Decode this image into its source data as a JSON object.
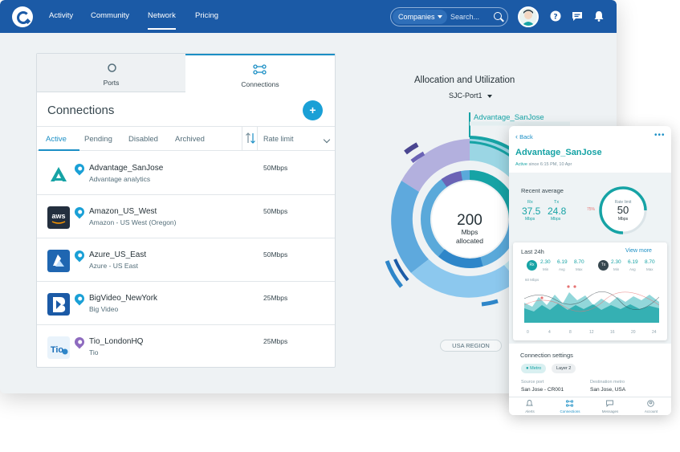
{
  "nav": {
    "items": [
      "Activity",
      "Community",
      "Network",
      "Pricing"
    ],
    "active": "Network"
  },
  "search": {
    "select": "Companies",
    "placeholder": "Search..."
  },
  "tabs": {
    "ports": "Ports",
    "connections": "Connections"
  },
  "panel": {
    "title": "Connections",
    "add_label": "+",
    "filters": [
      "Active",
      "Pending",
      "Disabled",
      "Archived"
    ],
    "rate_header": "Rate limit"
  },
  "connections": [
    {
      "name": "Advantage_SanJose",
      "sub": "Advantage analytics",
      "rate": "50Mbps",
      "pin_color": "#1aa0d6",
      "logo": "advantage-logo"
    },
    {
      "name": "Amazon_US_West",
      "sub": "Amazon - US West (Oregon)",
      "rate": "50Mbps",
      "pin_color": "#1aa0d6",
      "logo": "aws-logo"
    },
    {
      "name": "Azure_US_East",
      "sub": "Azure - US East",
      "rate": "50Mbps",
      "pin_color": "#1aa0d6",
      "logo": "azure-logo"
    },
    {
      "name": "BigVideo_NewYork",
      "sub": "Big Video",
      "rate": "25Mbps",
      "pin_color": "#1aa0d6",
      "logo": "bigvideo-logo"
    },
    {
      "name": "Tio_LondonHQ",
      "sub": "Tio",
      "rate": "25Mbps",
      "pin_color": "#8e6bbf",
      "logo": "tio-logo"
    }
  ],
  "allocation": {
    "title": "Allocation and Utilization",
    "port": "SJC-Port1",
    "center_value": "200",
    "center_unit": "Mbps",
    "center_label": "allocated",
    "highlight_label": "Advantage_SanJose",
    "region": "USA REGION",
    "colors": {
      "teal": "#16a3a5",
      "blue": "#2e86c9",
      "lavender": "#b3b0de",
      "purple": "#6b63b5"
    }
  },
  "mobile": {
    "back": "Back",
    "title": "Advantage_SanJose",
    "active_word": "Active",
    "active_since": "since 6:15 PM, 10 Apr",
    "recent_label": "Recent average",
    "rx_label": "Rx",
    "rx_value": "37.5",
    "tx_label": "Tx",
    "tx_value": "24.8",
    "unit": "Mbps",
    "gauge_percent_label": "75%",
    "gauge_top": "Rate limit",
    "gauge_value": "50",
    "gauge_unit": "Mbps",
    "gauge_fill": 0.75,
    "last24_label": "Last 24h",
    "view_more": "View more",
    "rx_badge": "Rx",
    "tx_badge": "Tx",
    "rx_stats": [
      "2.30",
      "6.19",
      "8.70"
    ],
    "tx_stats": [
      "2.30",
      "6.19",
      "8.70"
    ],
    "stat_labels": [
      "Min",
      "Avg",
      "Max"
    ],
    "chart_unit": "60 Mbps",
    "axis_ticks": [
      "0",
      "4",
      "8",
      "12",
      "16",
      "20",
      "24"
    ],
    "settings_label": "Connection settings",
    "chip_metro": "Metro",
    "chip_layer": "Layer 2",
    "source_label": "Source port",
    "source_value": "San Jose - CR001",
    "dest_label": "Destination metro",
    "dest_value": "San Jose, USA",
    "bottom_nav": [
      "Alerts",
      "Connections",
      "Messages",
      "Account"
    ],
    "bottom_active": "Connections"
  }
}
